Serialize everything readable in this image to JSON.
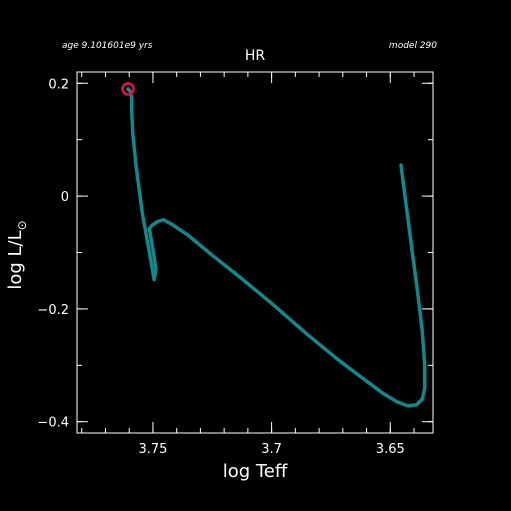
{
  "header": {
    "age_label": "age 9.101601e9 yrs",
    "model_label": "model 290"
  },
  "chart_data": {
    "type": "line",
    "title": "HR",
    "xlabel": "log Teff",
    "ylabel_main": "log L/L",
    "ylabel_sub": "⊙",
    "xlim": [
      3.782,
      3.632
    ],
    "ylim": [
      -0.42,
      0.22
    ],
    "x_reversed": true,
    "grid": false,
    "x_ticks": [
      {
        "value": 3.75,
        "label": "3.75"
      },
      {
        "value": 3.7,
        "label": "3.7"
      },
      {
        "value": 3.65,
        "label": "3.65"
      }
    ],
    "y_ticks": [
      {
        "value": 0.2,
        "label": "0.2"
      },
      {
        "value": 0,
        "label": "0"
      },
      {
        "value": -0.2,
        "label": "−0.2"
      },
      {
        "value": -0.4,
        "label": "−0.4"
      }
    ],
    "x_minor_step": 0.01,
    "y_minor_step": 0.1,
    "series": [
      {
        "color": "#0f8a8a",
        "x": [
          3.6455,
          3.6435,
          3.641,
          3.6385,
          3.6365,
          3.6355,
          3.6355,
          3.6365,
          3.639,
          3.6425,
          3.647,
          3.653,
          3.661,
          3.672,
          3.685,
          3.7,
          3.713,
          3.725,
          3.735,
          3.742,
          3.7455,
          3.748,
          3.7505,
          3.7515,
          3.7498,
          3.7487,
          3.7495,
          3.7515,
          3.7545,
          3.757,
          3.7585,
          3.759,
          3.759,
          3.7595,
          3.7605
        ],
        "y": [
          0.055,
          -0.01,
          -0.09,
          -0.17,
          -0.24,
          -0.3,
          -0.34,
          -0.36,
          -0.37,
          -0.372,
          -0.365,
          -0.35,
          -0.325,
          -0.29,
          -0.245,
          -0.19,
          -0.145,
          -0.105,
          -0.07,
          -0.05,
          -0.042,
          -0.045,
          -0.052,
          -0.058,
          -0.1,
          -0.13,
          -0.148,
          -0.1,
          -0.03,
          0.05,
          0.11,
          0.155,
          0.175,
          0.185,
          0.19
        ]
      }
    ],
    "marker": {
      "x": 3.7605,
      "y": 0.19,
      "color": "#e0104a"
    }
  }
}
